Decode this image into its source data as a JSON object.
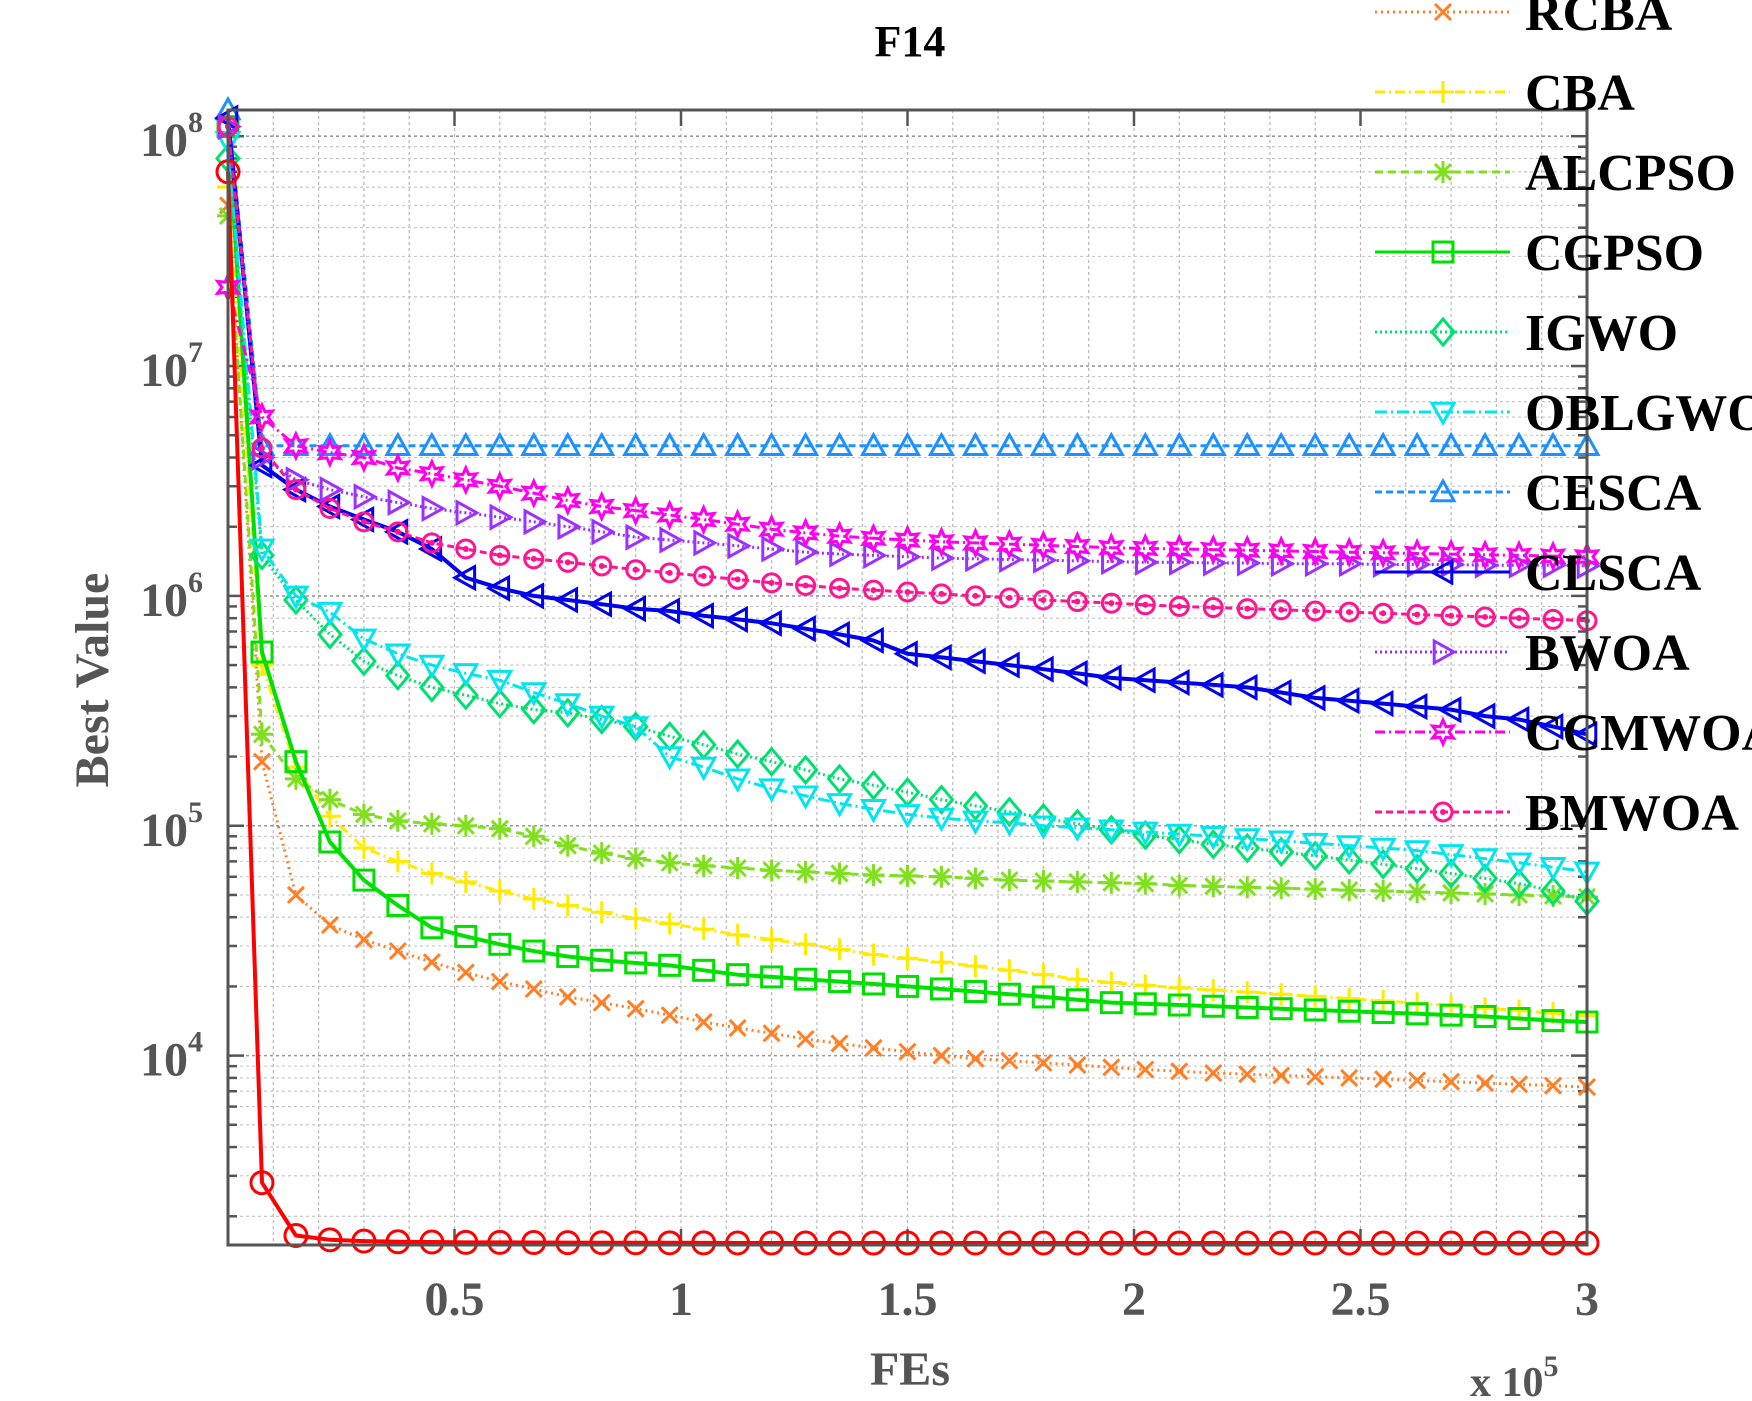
{
  "chart_data": {
    "type": "line",
    "title": "F14",
    "xlabel": "FEs",
    "ylabel": "Best Value",
    "x_exponent_label": "x 10",
    "x_exponent_sup": "5",
    "xlim": [
      0,
      300000
    ],
    "ylim": [
      1500,
      130000000
    ],
    "y_scale": "log",
    "grid": true,
    "legend_position": "top-right",
    "x_ticks": [
      50000,
      100000,
      150000,
      200000,
      250000,
      300000
    ],
    "x_tick_labels": [
      "0.5",
      "1",
      "1.5",
      "2",
      "2.5",
      "3"
    ],
    "y_ticks": [
      10000,
      100000,
      1000000,
      10000000,
      100000000
    ],
    "y_tick_labels": [
      {
        "base": "10",
        "exp": "4"
      },
      {
        "base": "10",
        "exp": "5"
      },
      {
        "base": "10",
        "exp": "6"
      },
      {
        "base": "10",
        "exp": "7"
      },
      {
        "base": "10",
        "exp": "8"
      }
    ],
    "x": [
      0,
      7500,
      15000,
      22500,
      30000,
      37500,
      45000,
      52500,
      60000,
      67500,
      75000,
      82500,
      90000,
      97500,
      105000,
      112500,
      120000,
      127500,
      135000,
      142500,
      150000,
      157500,
      165000,
      172500,
      180000,
      187500,
      195000,
      202500,
      210000,
      217500,
      225000,
      232500,
      240000,
      247500,
      255000,
      262500,
      270000,
      277500,
      285000,
      292500,
      300000
    ],
    "series": [
      {
        "name": "RCBA",
        "color": "#ff7f27",
        "dash": "2,4",
        "marker": "x",
        "values": [
          50000000,
          190000,
          50000,
          37000,
          32000,
          28500,
          25500,
          23000,
          21000,
          19500,
          18000,
          17000,
          16000,
          15000,
          14000,
          13200,
          12500,
          11800,
          11300,
          10800,
          10400,
          10000,
          9700,
          9500,
          9300,
          9100,
          8900,
          8700,
          8550,
          8400,
          8300,
          8200,
          8100,
          8000,
          7900,
          7800,
          7700,
          7600,
          7500,
          7400,
          7300
        ]
      },
      {
        "name": "CBA",
        "color": "#ffea00",
        "dash": "10,4,2,4",
        "marker": "+",
        "values": [
          60000000,
          500000,
          180000,
          110000,
          80000,
          70000,
          62000,
          57000,
          52000,
          48000,
          45000,
          42000,
          39500,
          37500,
          35500,
          33500,
          32000,
          30500,
          29000,
          27500,
          26500,
          25500,
          24500,
          23500,
          22500,
          21500,
          20800,
          20200,
          19700,
          19300,
          18900,
          18500,
          18100,
          17700,
          17300,
          16900,
          16500,
          16100,
          15700,
          15300,
          14900
        ]
      },
      {
        "name": "ALCPSO",
        "color": "#80e020",
        "dash": "8,5",
        "marker": "star",
        "values": [
          45000000,
          250000,
          160000,
          130000,
          112000,
          105000,
          102000,
          100000,
          97000,
          90000,
          82000,
          76000,
          72000,
          69000,
          67000,
          65500,
          64000,
          63000,
          62000,
          61000,
          60500,
          60000,
          59000,
          58000,
          57500,
          57000,
          56500,
          56000,
          55000,
          54500,
          54000,
          53500,
          53000,
          52500,
          52000,
          51500,
          51000,
          50500,
          50000,
          49500,
          49000
        ]
      },
      {
        "name": "CGPSO",
        "color": "#00e000",
        "dash": "",
        "marker": "square",
        "values": [
          110000000,
          570000,
          190000,
          85000,
          58000,
          45000,
          36000,
          33000,
          30500,
          28500,
          27000,
          26000,
          25300,
          24700,
          23500,
          22500,
          22000,
          21500,
          21000,
          20500,
          20000,
          19500,
          19000,
          18500,
          18000,
          17500,
          17000,
          16800,
          16600,
          16400,
          16200,
          16000,
          15800,
          15600,
          15400,
          15200,
          15000,
          14800,
          14500,
          14200,
          14000
        ]
      },
      {
        "name": "IGWO",
        "color": "#00e070",
        "dash": "2,3",
        "marker": "diamond",
        "values": [
          80000000,
          1500000,
          960000,
          680000,
          520000,
          450000,
          400000,
          370000,
          340000,
          320000,
          310000,
          290000,
          270000,
          245000,
          225000,
          205000,
          190000,
          175000,
          160000,
          150000,
          140000,
          130000,
          122000,
          115000,
          108000,
          102000,
          96000,
          91000,
          87000,
          83000,
          80000,
          77000,
          74000,
          71000,
          68000,
          65000,
          62000,
          59000,
          56000,
          52000,
          47000
        ]
      },
      {
        "name": "OBLGWO",
        "color": "#00e5ee",
        "dash": "12,4,2,4",
        "marker": "tri-down",
        "values": [
          95000000,
          1600000,
          1000000,
          850000,
          650000,
          560000,
          500000,
          460000,
          430000,
          380000,
          340000,
          300000,
          270000,
          200000,
          180000,
          160000,
          145000,
          135000,
          125000,
          118000,
          112000,
          108000,
          105000,
          103000,
          100000,
          98000,
          96000,
          94000,
          92000,
          90000,
          88000,
          86000,
          84000,
          82000,
          80000,
          78000,
          75000,
          72000,
          69000,
          66000,
          63000
        ]
      },
      {
        "name": "CESCA",
        "color": "#1e90ff",
        "dash": "7,4",
        "marker": "tri-up",
        "values": [
          130000000,
          4500000,
          4500000,
          4500000,
          4500000,
          4500000,
          4500000,
          4500000,
          4500000,
          4500000,
          4500000,
          4500000,
          4500000,
          4500000,
          4500000,
          4500000,
          4500000,
          4500000,
          4500000,
          4500000,
          4500000,
          4500000,
          4500000,
          4500000,
          4500000,
          4500000,
          4500000,
          4500000,
          4500000,
          4500000,
          4500000,
          4500000,
          4500000,
          4500000,
          4500000,
          4500000,
          4500000,
          4500000,
          4500000,
          4500000,
          4500000
        ]
      },
      {
        "name": "CLSCA",
        "color": "#0000ee",
        "dash": "",
        "marker": "tri-left",
        "values": [
          120000000,
          3700000,
          2900000,
          2450000,
          2150000,
          1900000,
          1600000,
          1200000,
          1080000,
          1000000,
          960000,
          920000,
          880000,
          860000,
          820000,
          790000,
          760000,
          720000,
          680000,
          640000,
          560000,
          540000,
          520000,
          500000,
          480000,
          460000,
          440000,
          430000,
          420000,
          410000,
          400000,
          380000,
          360000,
          350000,
          340000,
          330000,
          320000,
          300000,
          290000,
          270000,
          250000
        ]
      },
      {
        "name": "BWOA",
        "color": "#9b30ff",
        "dash": "2,3",
        "marker": "tri-right",
        "values": [
          110000000,
          4000000,
          3200000,
          2900000,
          2700000,
          2550000,
          2400000,
          2300000,
          2200000,
          2100000,
          2000000,
          1900000,
          1800000,
          1750000,
          1700000,
          1650000,
          1600000,
          1550000,
          1520000,
          1500000,
          1480000,
          1460000,
          1450000,
          1440000,
          1430000,
          1420000,
          1410000,
          1400000,
          1400000,
          1390000,
          1390000,
          1380000,
          1380000,
          1380000,
          1370000,
          1370000,
          1370000,
          1360000,
          1360000,
          1360000,
          1350000
        ]
      },
      {
        "name": "CCMWOA",
        "color": "#ff00ee",
        "dash": "10,4,2,4",
        "marker": "hexstar",
        "values": [
          22000000,
          6000000,
          4500000,
          4200000,
          4000000,
          3600000,
          3400000,
          3200000,
          3000000,
          2800000,
          2600000,
          2450000,
          2350000,
          2250000,
          2150000,
          2050000,
          1950000,
          1880000,
          1820000,
          1780000,
          1750000,
          1720000,
          1700000,
          1680000,
          1660000,
          1640000,
          1620000,
          1610000,
          1600000,
          1590000,
          1580000,
          1570000,
          1560000,
          1550000,
          1540000,
          1530000,
          1520000,
          1510000,
          1500000,
          1490000,
          1480000
        ]
      },
      {
        "name": "BMWOA",
        "color": "#ff1493",
        "dash": "7,4",
        "marker": "gear",
        "values": [
          110000000,
          4400000,
          2900000,
          2400000,
          2100000,
          1900000,
          1700000,
          1600000,
          1500000,
          1450000,
          1400000,
          1350000,
          1300000,
          1260000,
          1220000,
          1180000,
          1140000,
          1110000,
          1080000,
          1060000,
          1040000,
          1020000,
          1000000,
          980000,
          960000,
          945000,
          930000,
          915000,
          900000,
          890000,
          880000,
          870000,
          860000,
          850000,
          840000,
          830000,
          820000,
          810000,
          800000,
          790000,
          780000
        ]
      },
      {
        "name": "",
        "color": "#ff0000",
        "dash": "",
        "marker": "circle",
        "values": [
          70000000,
          2800,
          1650,
          1580,
          1560,
          1550,
          1545,
          1540,
          1540,
          1538,
          1536,
          1535,
          1534,
          1533,
          1532,
          1531,
          1530,
          1530,
          1530,
          1530,
          1530,
          1530,
          1530,
          1530,
          1530,
          1530,
          1530,
          1530,
          1530,
          1530,
          1530,
          1530,
          1530,
          1530,
          1530,
          1530,
          1530,
          1530,
          1530,
          1530,
          1530
        ]
      }
    ]
  }
}
